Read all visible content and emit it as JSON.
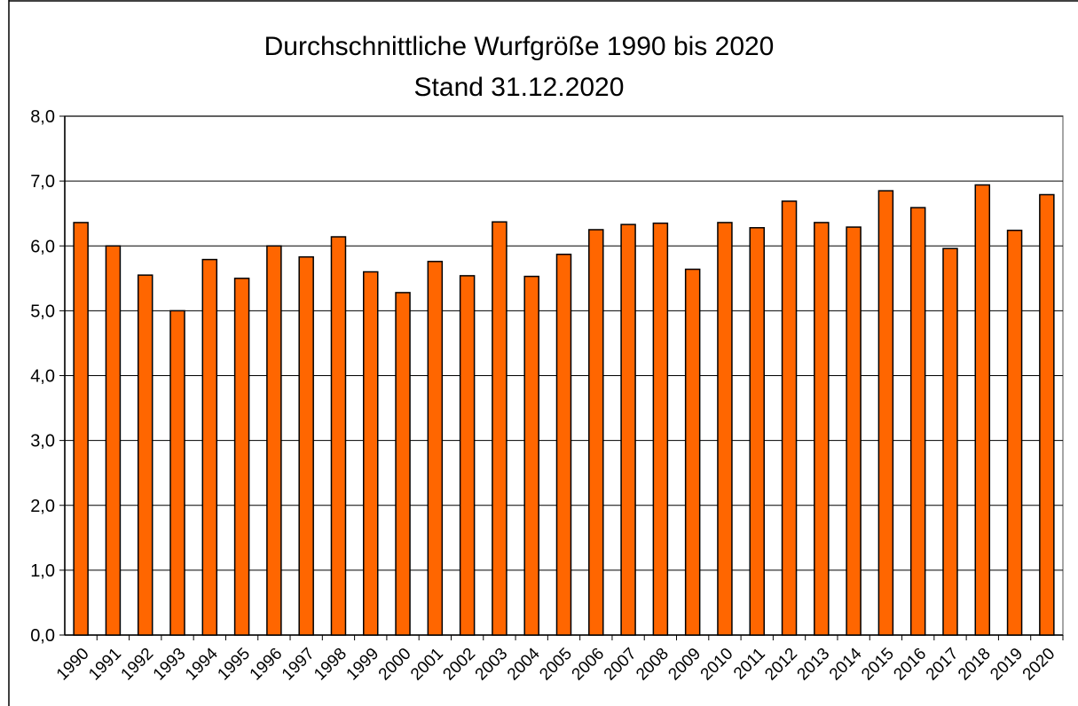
{
  "chart_data": {
    "type": "bar",
    "title": "Durchschnittliche Wurfgröße 1990 bis 2020",
    "subtitle": "Stand 31.12.2020",
    "categories": [
      "1990",
      "1991",
      "1992",
      "1993",
      "1994",
      "1995",
      "1996",
      "1997",
      "1998",
      "1999",
      "2000",
      "2001",
      "2002",
      "2003",
      "2004",
      "2005",
      "2006",
      "2007",
      "2008",
      "2009",
      "2010",
      "2011",
      "2012",
      "2013",
      "2014",
      "2015",
      "2016",
      "2017",
      "2018",
      "2019",
      "2020"
    ],
    "values": [
      6.36,
      6.0,
      5.55,
      5.0,
      5.79,
      5.5,
      6.0,
      5.83,
      6.14,
      5.6,
      5.28,
      5.76,
      5.54,
      6.37,
      5.53,
      5.87,
      6.25,
      6.33,
      6.35,
      5.64,
      6.36,
      6.28,
      6.69,
      6.36,
      6.29,
      6.85,
      6.59,
      5.96,
      6.94,
      6.24,
      6.79
    ],
    "color": "#ff6600",
    "ylim": [
      0,
      8
    ],
    "yticks": [
      {
        "value": 0,
        "label": "0,0"
      },
      {
        "value": 1,
        "label": "1,0"
      },
      {
        "value": 2,
        "label": "2,0"
      },
      {
        "value": 3,
        "label": "3,0"
      },
      {
        "value": 4,
        "label": "4,0"
      },
      {
        "value": 5,
        "label": "5,0"
      },
      {
        "value": 6,
        "label": "6,0"
      },
      {
        "value": 7,
        "label": "7,0"
      },
      {
        "value": 8,
        "label": "8,0"
      }
    ],
    "grid": true
  }
}
